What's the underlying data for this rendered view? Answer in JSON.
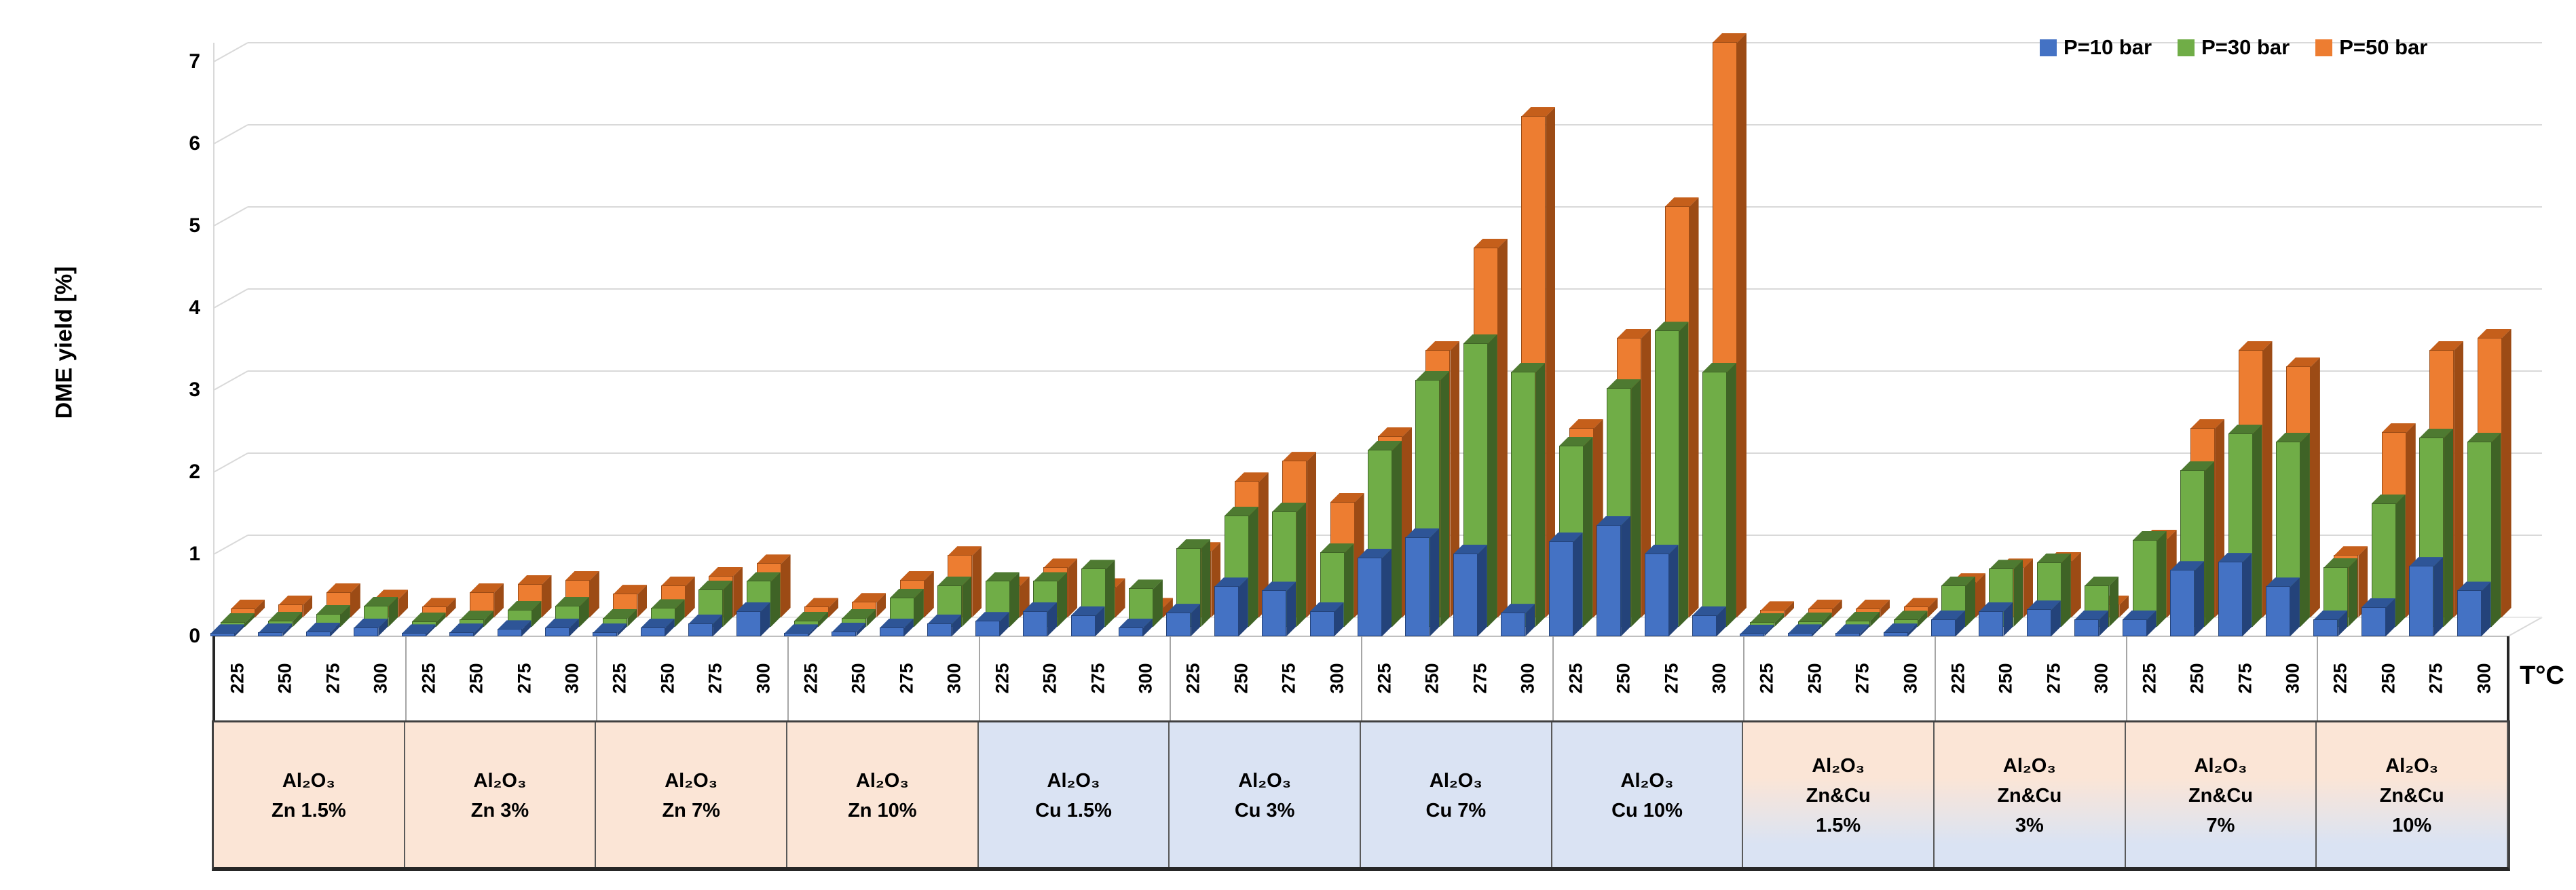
{
  "figure": {
    "background": "#ffffff",
    "tc_label": "T°C"
  },
  "chart_data": {
    "type": "bar",
    "title": "",
    "ylabel": "DME yield [%]",
    "xlabel": "T°C",
    "ylim": [
      0,
      7
    ],
    "yticks": [
      0,
      1,
      2,
      3,
      4,
      5,
      6,
      7
    ],
    "grid": true,
    "legend_position": "top-right",
    "style": "3d-column",
    "grid_color": "#D9D9D9",
    "temperatures": [
      "225",
      "250",
      "275",
      "300"
    ],
    "series": [
      {
        "name": "P=10 bar",
        "color": "#4472C4",
        "top_color": "#2E5597",
        "side_color": "#24437A"
      },
      {
        "name": "P=30 bar",
        "color": "#70AD47",
        "top_color": "#4E7A31",
        "side_color": "#3F6326"
      },
      {
        "name": "P=50 bar",
        "color": "#ED7D31",
        "top_color": "#C55F1B",
        "side_color": "#9C4B15"
      }
    ],
    "group_fills": {
      "zn": "#FBE5D6",
      "cu": "#DAE3F3",
      "zncu": "gradient(#FBE5D6 -> #DAE3F3)"
    },
    "groups": [
      {
        "label_lines": [
          "Al₂O₃",
          "Zn 1.5%"
        ],
        "fill": "zn",
        "series_values": [
          [
            0.03,
            0.04,
            0.05,
            0.1
          ],
          [
            0.05,
            0.07,
            0.15,
            0.25
          ],
          [
            0.1,
            0.15,
            0.3,
            0.22
          ]
        ]
      },
      {
        "label_lines": [
          "Al₂O₃",
          "Zn 3%"
        ],
        "fill": "zn",
        "series_values": [
          [
            0.03,
            0.04,
            0.08,
            0.1
          ],
          [
            0.06,
            0.08,
            0.2,
            0.25
          ],
          [
            0.12,
            0.3,
            0.4,
            0.45
          ]
        ]
      },
      {
        "label_lines": [
          "Al₂O₃",
          "Zn 7%"
        ],
        "fill": "zn",
        "series_values": [
          [
            0.04,
            0.1,
            0.15,
            0.3
          ],
          [
            0.1,
            0.22,
            0.45,
            0.55
          ],
          [
            0.28,
            0.38,
            0.5,
            0.65
          ]
        ]
      },
      {
        "label_lines": [
          "Al₂O₃",
          "Zn 10%"
        ],
        "fill": "zn",
        "series_values": [
          [
            0.03,
            0.05,
            0.1,
            0.15
          ],
          [
            0.07,
            0.1,
            0.35,
            0.5
          ],
          [
            0.12,
            0.18,
            0.45,
            0.75
          ]
        ]
      },
      {
        "label_lines": [
          "Al₂O₃",
          "Cu 1.5%"
        ],
        "fill": "cu",
        "series_values": [
          [
            0.18,
            0.3,
            0.25,
            0.1
          ],
          [
            0.55,
            0.55,
            0.7,
            0.46
          ],
          [
            0.38,
            0.6,
            0.36,
            0.12
          ]
        ]
      },
      {
        "label_lines": [
          "Al₂O₃",
          "Cu 3%"
        ],
        "fill": "cu",
        "series_values": [
          [
            0.28,
            0.6,
            0.55,
            0.3
          ],
          [
            0.95,
            1.35,
            1.4,
            0.9
          ],
          [
            0.8,
            1.65,
            1.9,
            1.4
          ]
        ]
      },
      {
        "label_lines": [
          "Al₂O₃",
          "Cu 7%"
        ],
        "fill": "cu",
        "series_values": [
          [
            0.95,
            1.2,
            1.0,
            0.28
          ],
          [
            2.15,
            3.0,
            3.45,
            3.1
          ],
          [
            2.2,
            3.25,
            4.5,
            6.1
          ]
        ]
      },
      {
        "label_lines": [
          "Al₂O₃",
          "Cu 10%"
        ],
        "fill": "cu",
        "series_values": [
          [
            1.15,
            1.35,
            1.0,
            0.25
          ],
          [
            2.2,
            2.9,
            3.6,
            3.1
          ],
          [
            2.3,
            3.4,
            5.0,
            7.0
          ]
        ]
      },
      {
        "label_lines": [
          "Al₂O₃",
          "Zn&Cu",
          "1.5%"
        ],
        "fill": "zncu",
        "series_values": [
          [
            0.02,
            0.03,
            0.03,
            0.04
          ],
          [
            0.05,
            0.06,
            0.07,
            0.08
          ],
          [
            0.08,
            0.1,
            0.1,
            0.12
          ]
        ]
      },
      {
        "label_lines": [
          "Al₂O₃",
          "Zn&Cu",
          "3%"
        ],
        "fill": "zncu",
        "series_values": [
          [
            0.2,
            0.3,
            0.32,
            0.2
          ],
          [
            0.5,
            0.7,
            0.78,
            0.5
          ],
          [
            0.42,
            0.6,
            0.68,
            0.15
          ]
        ]
      },
      {
        "label_lines": [
          "Al₂O₃",
          "Zn&Cu",
          "7%"
        ],
        "fill": "zncu",
        "series_values": [
          [
            0.2,
            0.8,
            0.9,
            0.6
          ],
          [
            1.05,
            1.9,
            2.35,
            2.25
          ],
          [
            0.95,
            2.3,
            3.25,
            3.05
          ]
        ]
      },
      {
        "label_lines": [
          "Al₂O₃",
          "Zn&Cu",
          "10%"
        ],
        "fill": "zncu",
        "series_values": [
          [
            0.2,
            0.35,
            0.85,
            0.55
          ],
          [
            0.72,
            1.5,
            2.3,
            2.25
          ],
          [
            0.75,
            2.25,
            3.25,
            3.4
          ]
        ]
      }
    ]
  }
}
